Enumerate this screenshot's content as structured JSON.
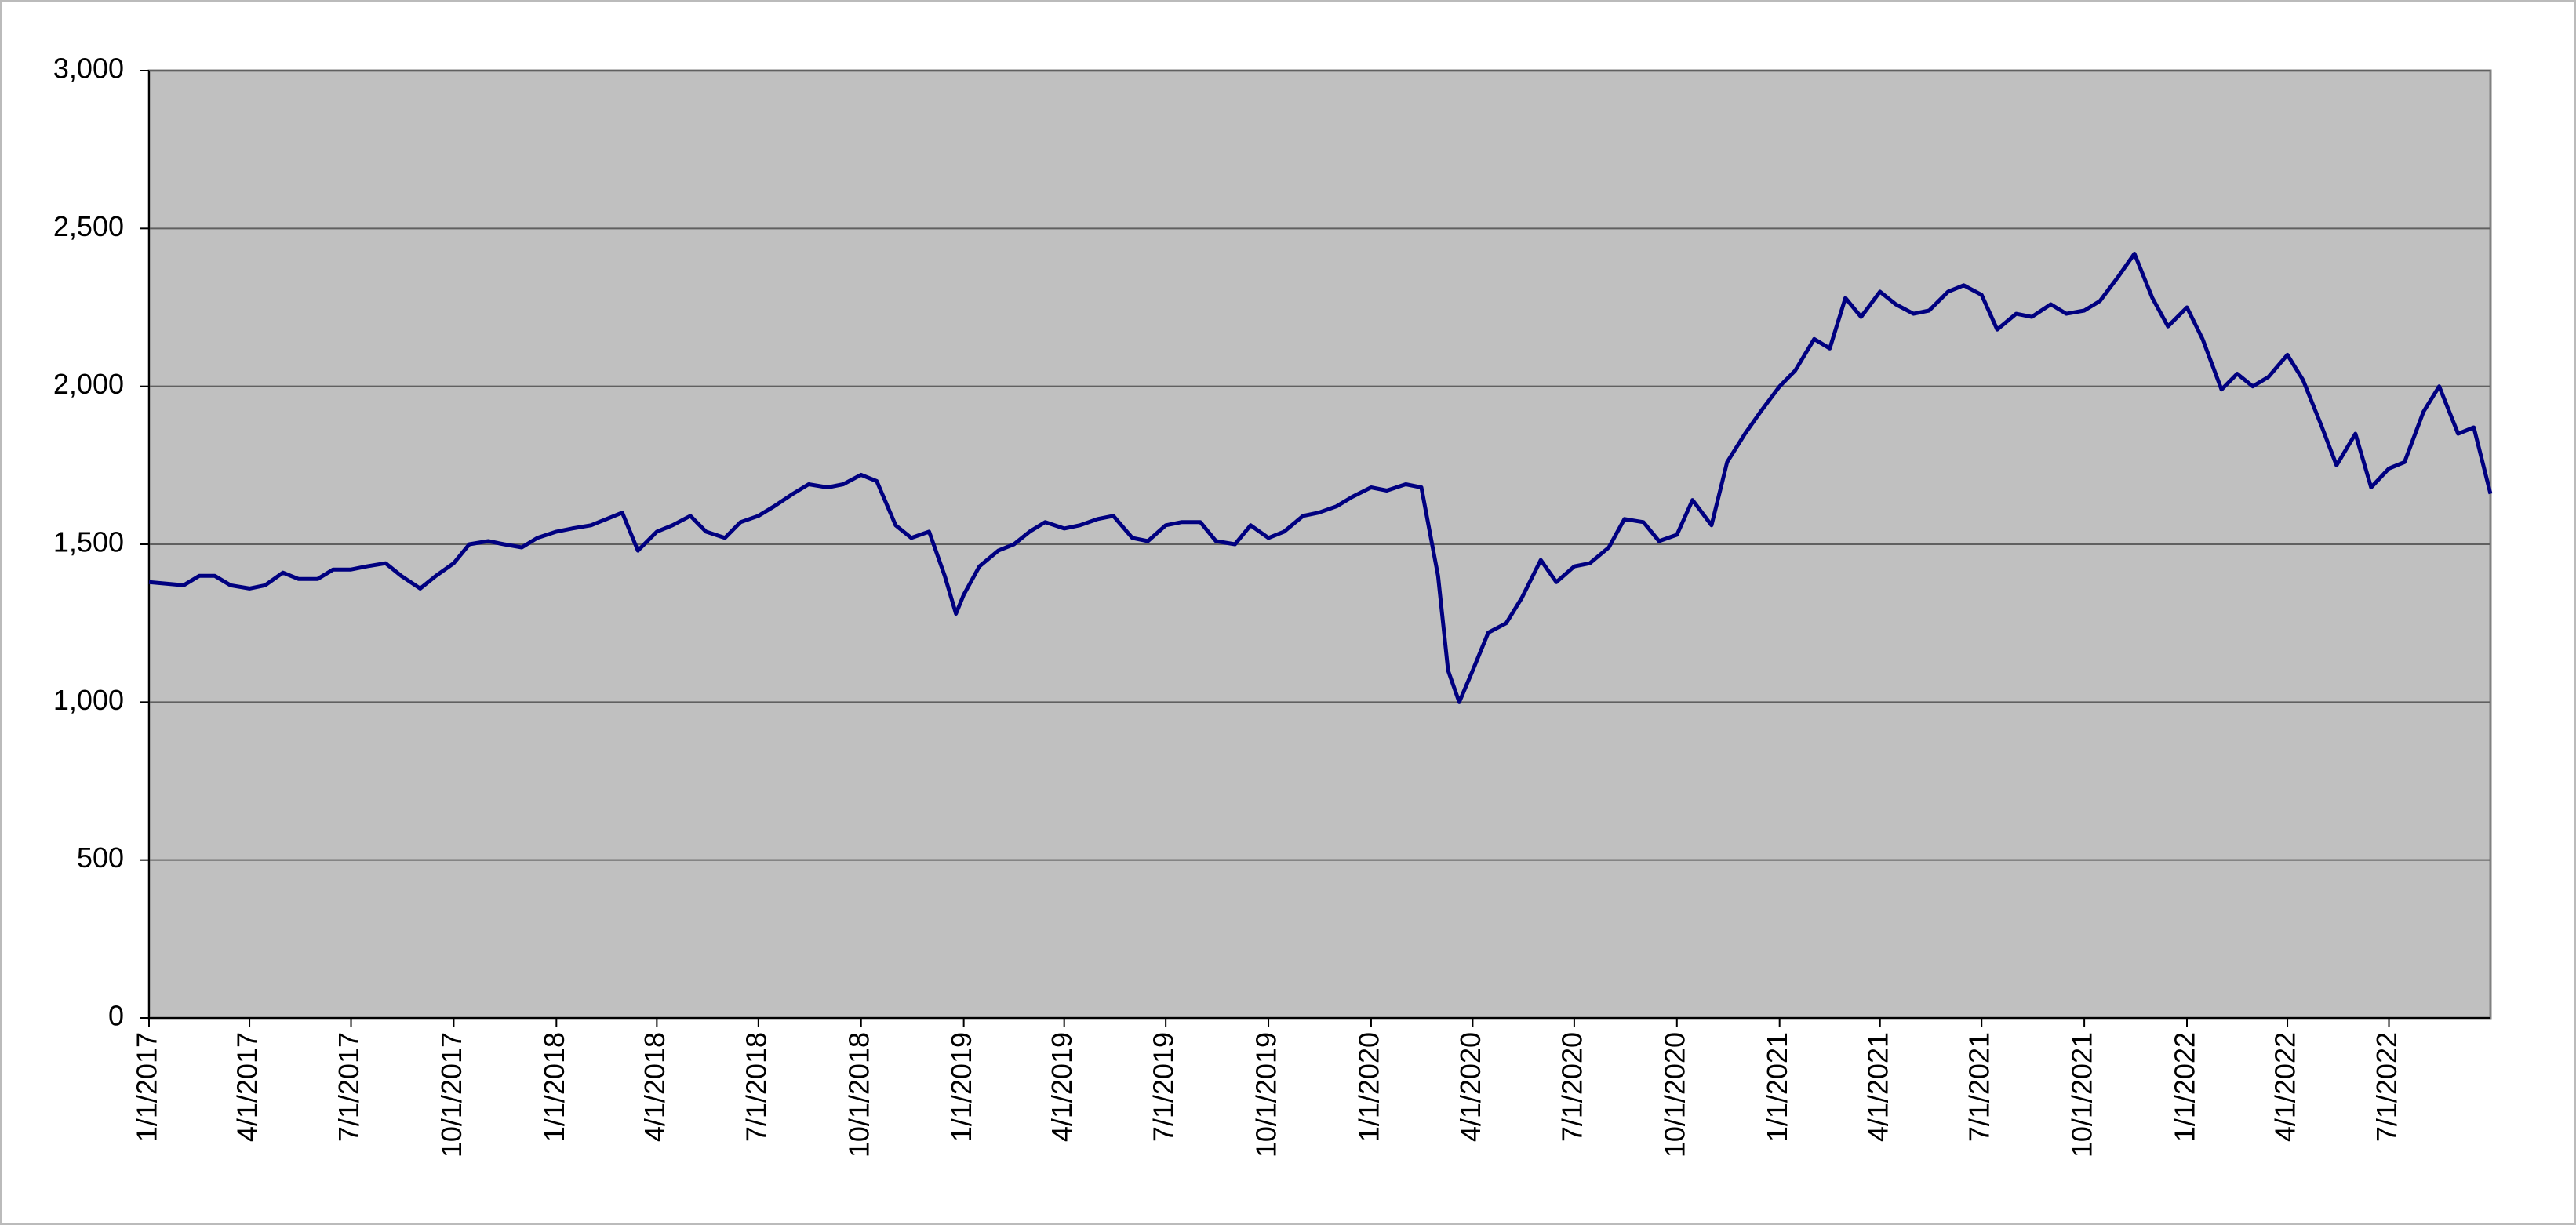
{
  "chart_data": {
    "type": "line",
    "color": "#000080",
    "background": "#c0c0c0",
    "grid": true,
    "x": [
      "1/1/2017",
      "2/1/2017",
      "2/15/2017",
      "3/1/2017",
      "3/15/2017",
      "4/1/2017",
      "4/15/2017",
      "5/1/2017",
      "5/15/2017",
      "6/1/2017",
      "6/15/2017",
      "7/1/2017",
      "7/15/2017",
      "8/1/2017",
      "8/15/2017",
      "9/1/2017",
      "9/15/2017",
      "10/1/2017",
      "10/15/2017",
      "11/1/2017",
      "11/15/2017",
      "12/1/2017",
      "12/15/2017",
      "1/1/2018",
      "1/15/2018",
      "2/1/2018",
      "2/15/2018",
      "3/1/2018",
      "3/15/2018",
      "4/1/2018",
      "4/15/2018",
      "5/1/2018",
      "5/15/2018",
      "6/1/2018",
      "6/15/2018",
      "7/1/2018",
      "7/15/2018",
      "8/1/2018",
      "8/15/2018",
      "9/1/2018",
      "9/15/2018",
      "10/1/2018",
      "10/15/2018",
      "11/1/2018",
      "11/15/2018",
      "12/1/2018",
      "12/15/2018",
      "12/25/2018",
      "1/1/2019",
      "1/15/2019",
      "2/1/2019",
      "2/15/2019",
      "3/1/2019",
      "3/15/2019",
      "4/1/2019",
      "4/15/2019",
      "5/1/2019",
      "5/15/2019",
      "6/1/2019",
      "6/15/2019",
      "7/1/2019",
      "7/15/2019",
      "8/1/2019",
      "8/15/2019",
      "9/1/2019",
      "9/15/2019",
      "10/1/2019",
      "10/15/2019",
      "11/1/2019",
      "11/15/2019",
      "12/1/2019",
      "12/15/2019",
      "1/1/2020",
      "1/15/2020",
      "2/1/2020",
      "2/15/2020",
      "3/1/2020",
      "3/10/2020",
      "3/20/2020",
      "4/1/2020",
      "4/15/2020",
      "5/1/2020",
      "5/15/2020",
      "6/1/2020",
      "6/15/2020",
      "7/1/2020",
      "7/15/2020",
      "8/1/2020",
      "8/15/2020",
      "9/1/2020",
      "9/15/2020",
      "10/1/2020",
      "10/15/2020",
      "11/1/2020",
      "11/15/2020",
      "12/1/2020",
      "12/15/2020",
      "1/1/2021",
      "1/15/2021",
      "2/1/2021",
      "2/15/2021",
      "3/1/2021",
      "3/15/2021",
      "4/1/2021",
      "4/15/2021",
      "5/1/2021",
      "5/15/2021",
      "6/1/2021",
      "6/15/2021",
      "7/1/2021",
      "7/15/2021",
      "8/1/2021",
      "8/15/2021",
      "9/1/2021",
      "9/15/2021",
      "10/1/2021",
      "10/15/2021",
      "11/1/2021",
      "11/15/2021",
      "12/1/2021",
      "12/15/2021",
      "1/1/2022",
      "1/15/2022",
      "2/1/2022",
      "2/15/2022",
      "3/1/2022",
      "3/15/2022",
      "4/1/2022",
      "4/15/2022",
      "5/1/2022",
      "5/15/2022",
      "6/1/2022",
      "6/15/2022",
      "7/1/2022",
      "7/15/2022",
      "8/1/2022",
      "8/15/2022",
      "9/1/2022",
      "9/15/2022",
      "9/30/2022"
    ],
    "values": [
      1380,
      1370,
      1400,
      1400,
      1370,
      1360,
      1370,
      1410,
      1390,
      1390,
      1420,
      1420,
      1430,
      1440,
      1400,
      1360,
      1400,
      1440,
      1500,
      1510,
      1500,
      1490,
      1520,
      1540,
      1550,
      1560,
      1580,
      1600,
      1480,
      1540,
      1560,
      1590,
      1540,
      1520,
      1570,
      1590,
      1620,
      1660,
      1690,
      1680,
      1690,
      1720,
      1700,
      1560,
      1520,
      1540,
      1400,
      1280,
      1340,
      1430,
      1480,
      1500,
      1540,
      1570,
      1550,
      1560,
      1580,
      1590,
      1520,
      1510,
      1560,
      1570,
      1570,
      1510,
      1500,
      1560,
      1520,
      1540,
      1590,
      1600,
      1620,
      1650,
      1680,
      1670,
      1690,
      1680,
      1400,
      1100,
      1000,
      1100,
      1220,
      1250,
      1330,
      1450,
      1380,
      1430,
      1440,
      1490,
      1580,
      1570,
      1510,
      1530,
      1640,
      1560,
      1760,
      1850,
      1920,
      2000,
      2050,
      2150,
      2120,
      2280,
      2220,
      2300,
      2260,
      2230,
      2240,
      2300,
      2320,
      2290,
      2180,
      2230,
      2220,
      2260,
      2230,
      2240,
      2270,
      2350,
      2420,
      2280,
      2190,
      2250,
      2150,
      1990,
      2040,
      2000,
      2030,
      2100,
      2020,
      1880,
      1750,
      1850,
      1680,
      1740,
      1760,
      1920,
      2000,
      1850,
      1870,
      1660
    ],
    "xlim": [
      "1/1/2017",
      "9/30/2022"
    ],
    "xticks": [
      "1/1/2017",
      "4/1/2017",
      "7/1/2017",
      "10/1/2017",
      "1/1/2018",
      "4/1/2018",
      "7/1/2018",
      "10/1/2018",
      "1/1/2019",
      "4/1/2019",
      "7/1/2019",
      "10/1/2019",
      "1/1/2020",
      "4/1/2020",
      "7/1/2020",
      "10/1/2020",
      "1/1/2021",
      "4/1/2021",
      "7/1/2021",
      "10/1/2021",
      "1/1/2022",
      "4/1/2022",
      "7/1/2022"
    ],
    "ylim": [
      0,
      3000
    ],
    "yticks": [
      0,
      500,
      {
        "value": 1000,
        "label": "1,000"
      },
      {
        "value": 1500,
        "label": "1,500"
      },
      {
        "value": 2000,
        "label": "2,000"
      },
      {
        "value": 2500,
        "label": "2,500"
      },
      {
        "value": 3000,
        "label": "3,000"
      }
    ]
  }
}
